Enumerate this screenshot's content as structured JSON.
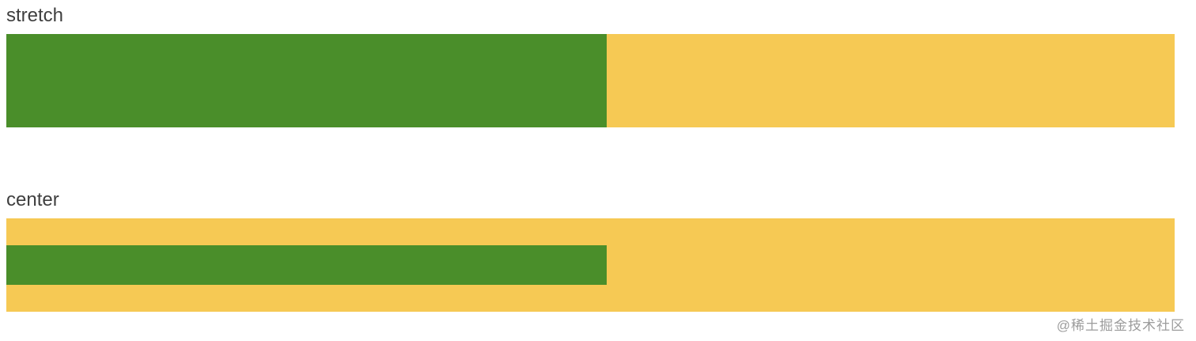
{
  "sections": [
    {
      "label": "stretch"
    },
    {
      "label": "center"
    }
  ],
  "watermark": {
    "text": "@稀土掘金技术社区"
  },
  "colors": {
    "green": "#4a8e2a",
    "yellow": "#f6c954",
    "label": "#3f3f3f",
    "watermark": "#9c9c9c"
  }
}
